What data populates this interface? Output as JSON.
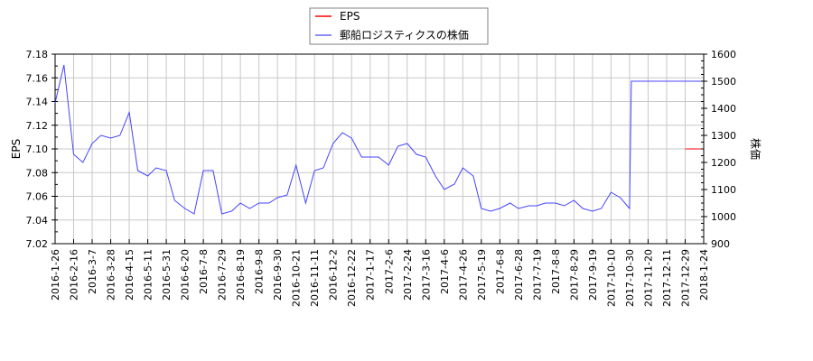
{
  "legend": {
    "items": [
      {
        "label": "EPS",
        "color": "#ff0000"
      },
      {
        "label": "郵船ロジスティクスの株価",
        "color": "#4444ff"
      }
    ]
  },
  "axes": {
    "left_title": "EPS",
    "right_title": "株価",
    "left_ticks": [
      "7.18",
      "7.16",
      "7.14",
      "7.12",
      "7.10",
      "7.08",
      "7.06",
      "7.04",
      "7.02"
    ],
    "right_ticks": [
      "1600",
      "1500",
      "1400",
      "1300",
      "1200",
      "1100",
      "1000",
      "900"
    ],
    "x_ticks": [
      "2016-1-26",
      "2016-2-16",
      "2016-3-7",
      "2016-3-28",
      "2016-4-15",
      "2016-5-11",
      "2016-5-31",
      "2016-6-20",
      "2016-7-8",
      "2016-7-29",
      "2016-8-19",
      "2016-9-8",
      "2016-9-30",
      "2016-10-21",
      "2016-11-11",
      "2016-12-2",
      "2016-12-22",
      "2017-1-17",
      "2017-2-6",
      "2017-2-24",
      "2017-3-16",
      "2017-4-6",
      "2017-4-26",
      "2017-5-19",
      "2017-6-8",
      "2017-6-28",
      "2017-7-19",
      "2017-8-8",
      "2017-8-29",
      "2017-9-19",
      "2017-10-10",
      "2017-10-30",
      "2017-11-20",
      "2017-12-11",
      "2017-12-29",
      "2018-1-24"
    ]
  },
  "chart_data": {
    "type": "line",
    "title": "",
    "xlabel": "",
    "ylabel": "EPS",
    "ylabel_right": "株価",
    "ylim": [
      7.02,
      7.18
    ],
    "ylim_right": [
      900,
      1600
    ],
    "grid": true,
    "legend_position": "top-center",
    "x_tick_labels": [
      "2016-1-26",
      "2016-2-16",
      "2016-3-7",
      "2016-3-28",
      "2016-4-15",
      "2016-5-11",
      "2016-5-31",
      "2016-6-20",
      "2016-7-8",
      "2016-7-29",
      "2016-8-19",
      "2016-9-8",
      "2016-9-30",
      "2016-10-21",
      "2016-11-11",
      "2016-12-2",
      "2016-12-22",
      "2017-1-17",
      "2017-2-6",
      "2017-2-24",
      "2017-3-16",
      "2017-4-6",
      "2017-4-26",
      "2017-5-19",
      "2017-6-8",
      "2017-6-28",
      "2017-7-19",
      "2017-8-8",
      "2017-8-29",
      "2017-9-19",
      "2017-10-10",
      "2017-10-30",
      "2017-11-20",
      "2017-12-11",
      "2017-12-29",
      "2018-1-24"
    ],
    "series": [
      {
        "name": "EPS",
        "axis": "left",
        "color": "#ff0000",
        "x": [
          "2017-12-29",
          "2018-1-24"
        ],
        "values": [
          7.1,
          7.1
        ]
      },
      {
        "name": "郵船ロジスティクスの株価",
        "axis": "right",
        "color": "#4444ff",
        "x": [
          "2016-1-26",
          "2016-2-5",
          "2016-2-16",
          "2016-2-26",
          "2016-3-7",
          "2016-3-17",
          "2016-3-28",
          "2016-4-6",
          "2016-4-15",
          "2016-4-27",
          "2016-5-11",
          "2016-5-20",
          "2016-5-31",
          "2016-6-9",
          "2016-6-20",
          "2016-6-29",
          "2016-7-8",
          "2016-7-19",
          "2016-7-29",
          "2016-8-9",
          "2016-8-19",
          "2016-8-29",
          "2016-9-8",
          "2016-9-20",
          "2016-9-30",
          "2016-10-11",
          "2016-10-21",
          "2016-11-1",
          "2016-11-11",
          "2016-11-21",
          "2016-12-2",
          "2016-12-12",
          "2016-12-22",
          "2017-1-5",
          "2017-1-17",
          "2017-1-26",
          "2017-2-6",
          "2017-2-15",
          "2017-2-24",
          "2017-3-6",
          "2017-3-16",
          "2017-3-27",
          "2017-4-6",
          "2017-4-17",
          "2017-4-26",
          "2017-5-9",
          "2017-5-19",
          "2017-5-29",
          "2017-6-8",
          "2017-6-19",
          "2017-6-28",
          "2017-7-10",
          "2017-7-19",
          "2017-7-28",
          "2017-8-8",
          "2017-8-18",
          "2017-8-29",
          "2017-9-8",
          "2017-9-19",
          "2017-9-29",
          "2017-10-10",
          "2017-10-20",
          "2017-10-30",
          "2017-11-1",
          "2017-11-20",
          "2017-12-11",
          "2017-12-29",
          "2018-1-24"
        ],
        "values": [
          1420,
          1560,
          1230,
          1200,
          1270,
          1300,
          1290,
          1300,
          1385,
          1170,
          1150,
          1180,
          1170,
          1060,
          1030,
          1010,
          1170,
          1170,
          1010,
          1020,
          1050,
          1030,
          1050,
          1050,
          1070,
          1080,
          1190,
          1050,
          1170,
          1180,
          1270,
          1310,
          1290,
          1220,
          1220,
          1220,
          1190,
          1260,
          1270,
          1230,
          1220,
          1150,
          1100,
          1120,
          1180,
          1150,
          1030,
          1020,
          1030,
          1050,
          1030,
          1040,
          1040,
          1050,
          1050,
          1040,
          1060,
          1030,
          1020,
          1030,
          1090,
          1070,
          1030,
          1500,
          1500,
          1500,
          1500,
          1500
        ]
      }
    ]
  }
}
